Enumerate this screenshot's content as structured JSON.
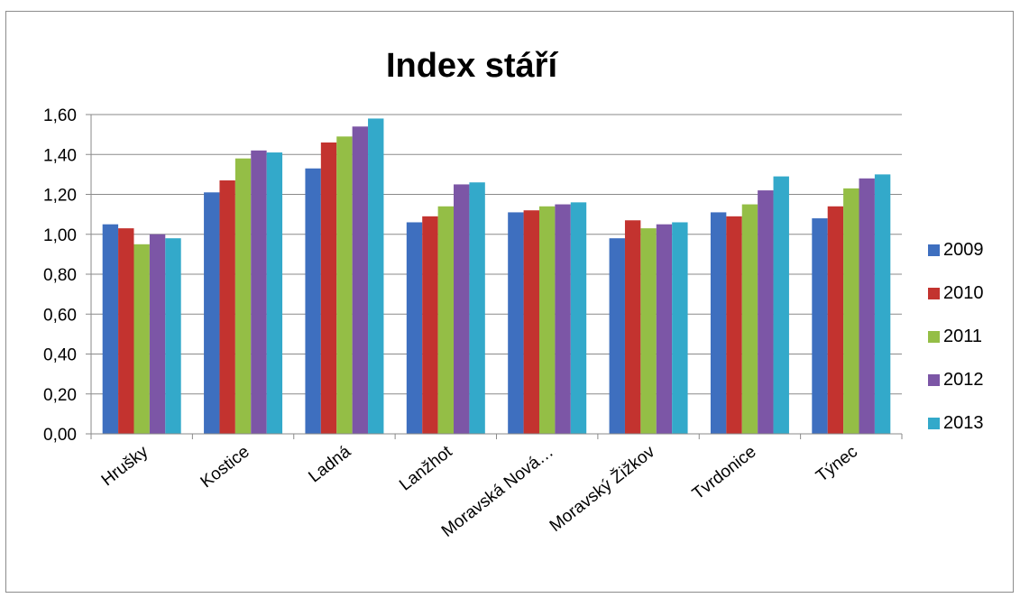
{
  "chart_data": {
    "type": "bar",
    "title": "Index stáří",
    "xlabel": "",
    "ylabel": "",
    "categories": [
      "Hrušky",
      "Kostice",
      "Ladná",
      "Lanžhot",
      "Moravská Nová…",
      "Moravský Žižkov",
      "Tvrdonice",
      "Týnec"
    ],
    "series": [
      {
        "name": "2009",
        "color": "#3e6fbf",
        "values": [
          1.05,
          1.21,
          1.33,
          1.06,
          1.11,
          0.98,
          1.11,
          1.08
        ]
      },
      {
        "name": "2010",
        "color": "#c3332f",
        "values": [
          1.03,
          1.27,
          1.46,
          1.09,
          1.12,
          1.07,
          1.09,
          1.14
        ]
      },
      {
        "name": "2011",
        "color": "#94be46",
        "values": [
          0.95,
          1.38,
          1.49,
          1.14,
          1.14,
          1.03,
          1.15,
          1.23
        ]
      },
      {
        "name": "2012",
        "color": "#7c56a6",
        "values": [
          1.0,
          1.42,
          1.54,
          1.25,
          1.15,
          1.05,
          1.22,
          1.28
        ]
      },
      {
        "name": "2013",
        "color": "#33a9ca",
        "values": [
          0.98,
          1.41,
          1.58,
          1.26,
          1.16,
          1.06,
          1.29,
          1.3
        ]
      }
    ],
    "ylim": [
      0,
      1.6
    ],
    "yticks": [
      "0,00",
      "0,20",
      "0,40",
      "0,60",
      "0,80",
      "1,00",
      "1,20",
      "1,40",
      "1,60"
    ],
    "grid": true,
    "legend_position": "right"
  }
}
